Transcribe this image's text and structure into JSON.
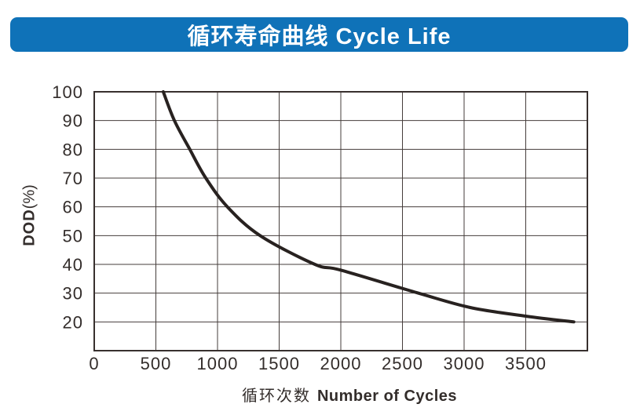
{
  "banner": {
    "title": "循环寿命曲线 Cycle Life",
    "bg_color": "#0f72b8",
    "text_color": "#ffffff"
  },
  "chart_data": {
    "type": "line",
    "title": "循环寿命曲线 Cycle Life",
    "xlabel": "循环次数 Number of Cycles",
    "xlabel_cn": "循环次数",
    "xlabel_en": "Number of Cycles",
    "ylabel": "DOD(%)",
    "ylabel_main": "DOD",
    "ylabel_unit": "(%)",
    "xlim": [
      0,
      4000
    ],
    "ylim": [
      10,
      100
    ],
    "x_ticks": [
      0,
      500,
      1000,
      1500,
      2000,
      2500,
      3000,
      3500
    ],
    "y_ticks": [
      100,
      90,
      80,
      70,
      60,
      50,
      40,
      30,
      20
    ],
    "grid": true,
    "legend_position": "none",
    "series": [
      {
        "name": "cycle-life-curve",
        "points": [
          [
            560,
            100
          ],
          [
            650,
            90
          ],
          [
            775,
            80
          ],
          [
            905,
            70
          ],
          [
            1080,
            60
          ],
          [
            1345,
            50
          ],
          [
            1790,
            40
          ],
          [
            2000,
            38
          ],
          [
            2630,
            30
          ],
          [
            3050,
            25
          ],
          [
            3500,
            22
          ],
          [
            3890,
            20
          ]
        ]
      }
    ],
    "colors": {
      "curve": "#282220",
      "grid": "#453d3b",
      "border": "#38302e",
      "text": "#332d2b"
    }
  }
}
